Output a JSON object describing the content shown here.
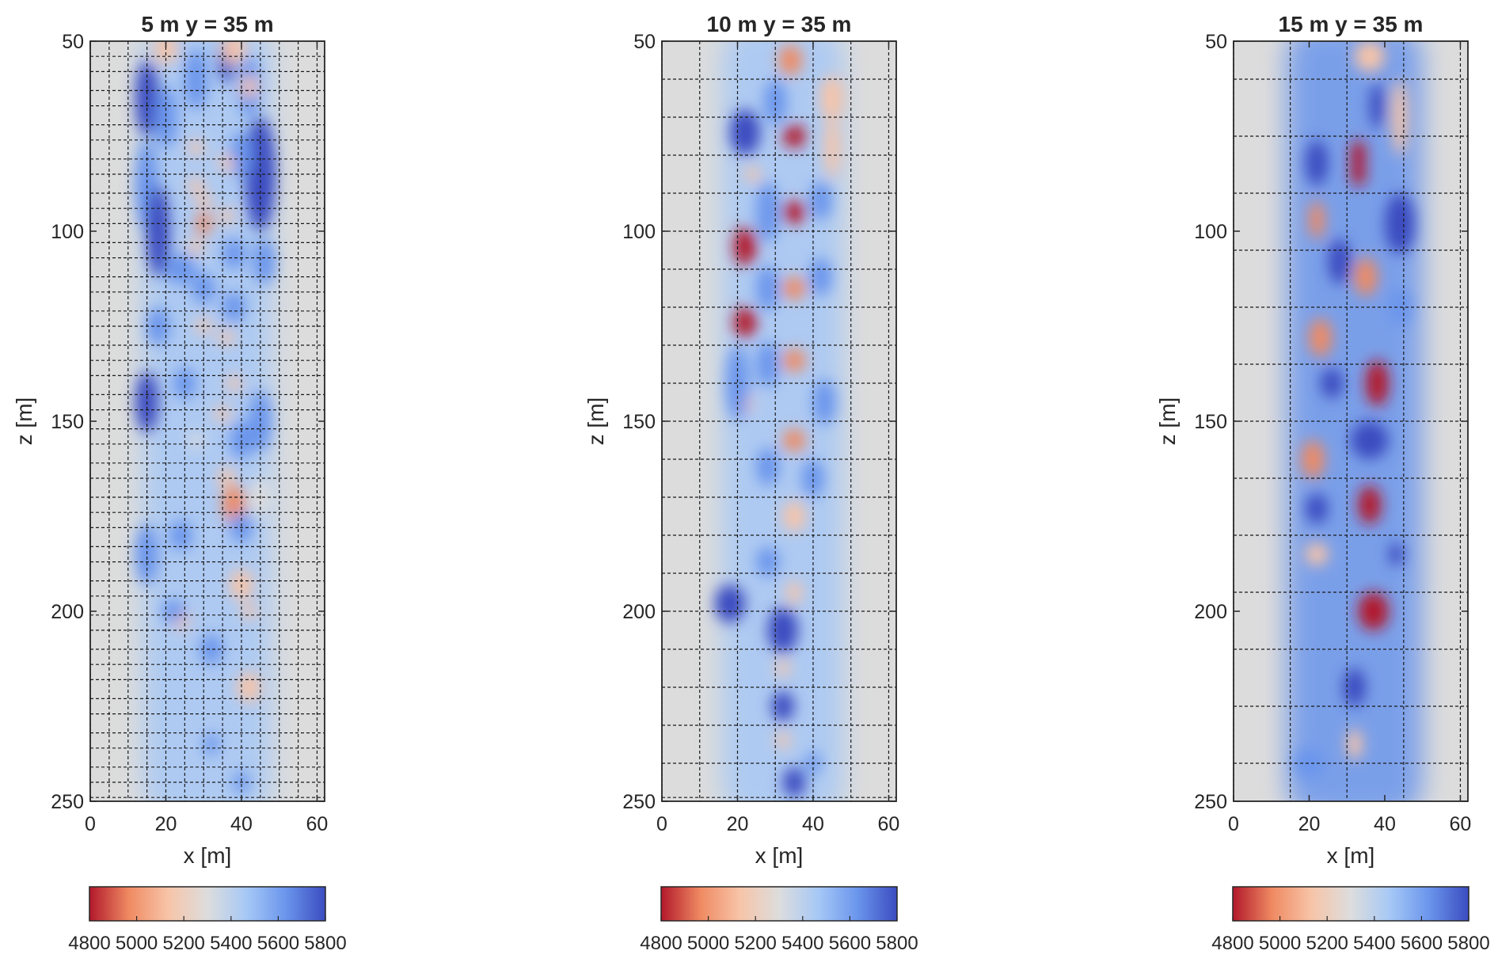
{
  "chart_data": [
    {
      "type": "heatmap",
      "title": "5 m  y = 35 m",
      "xlabel": "x [m]",
      "ylabel": "z [m]",
      "xlim": [
        0,
        62
      ],
      "ylim": [
        50,
        250
      ],
      "y_reversed": true,
      "xticks": [
        0,
        20,
        40,
        60
      ],
      "yticks": [
        50,
        100,
        150,
        200,
        250
      ],
      "grid": true,
      "grid_x": [
        0,
        5,
        10,
        15,
        20,
        25,
        30,
        35,
        40,
        45,
        50,
        55,
        60
      ],
      "grid_z": [
        54,
        58,
        63,
        67,
        72,
        76,
        81,
        85,
        90,
        94,
        98,
        103,
        107,
        112,
        116,
        121,
        125,
        130,
        134,
        138,
        143,
        147,
        152,
        156,
        161,
        165,
        170,
        174,
        178,
        183,
        187,
        192,
        196,
        201,
        205,
        210,
        214,
        218,
        223,
        227,
        232,
        236,
        241,
        245,
        249
      ],
      "background_color": "#dcdcdc",
      "colormap": [
        "#b2182b",
        "#ef8a62",
        "#f7c4a8",
        "#dddddd",
        "#a6c8f6",
        "#6a95ec",
        "#3b4cc0"
      ],
      "colorbar": {
        "min": 4800,
        "max": 5800,
        "ticks": [
          4800,
          5000,
          5200,
          5400,
          5600,
          5800
        ]
      },
      "band": {
        "x_center": 31,
        "half_width": 17,
        "value": 5490
      },
      "anomalies": [
        [
          15,
          65,
          3,
          10,
          5720
        ],
        [
          15,
          88,
          3,
          12,
          5700
        ],
        [
          20,
          70,
          3,
          8,
          5650
        ],
        [
          28,
          60,
          3,
          8,
          5680
        ],
        [
          36,
          55,
          2,
          6,
          5720
        ],
        [
          42,
          62,
          3,
          8,
          5700
        ],
        [
          45,
          85,
          4,
          15,
          5750
        ],
        [
          40,
          80,
          3,
          6,
          5680
        ],
        [
          20,
          52,
          3,
          4,
          5150
        ],
        [
          38,
          52,
          3,
          4,
          5180
        ],
        [
          42,
          62,
          2,
          3,
          5050
        ],
        [
          28,
          78,
          2,
          2,
          5150
        ],
        [
          36,
          82,
          2,
          2,
          5100
        ],
        [
          28,
          88,
          2,
          2,
          5150
        ],
        [
          30,
          92,
          2,
          2,
          5200
        ],
        [
          30,
          98,
          2,
          3,
          5000
        ],
        [
          28,
          104,
          2,
          2,
          5150
        ],
        [
          36,
          96,
          2,
          2,
          5200
        ],
        [
          18,
          100,
          3,
          12,
          5780
        ],
        [
          24,
          110,
          4,
          4,
          5650
        ],
        [
          46,
          108,
          3,
          6,
          5650
        ],
        [
          38,
          106,
          3,
          4,
          5680
        ],
        [
          30,
          115,
          3,
          4,
          5650
        ],
        [
          38,
          120,
          3,
          4,
          5680
        ],
        [
          30,
          125,
          2,
          2,
          5200
        ],
        [
          36,
          128,
          2,
          2,
          5150
        ],
        [
          18,
          125,
          3,
          5,
          5650
        ],
        [
          25,
          140,
          3,
          4,
          5600
        ],
        [
          38,
          140,
          2,
          2,
          5150
        ],
        [
          35,
          148,
          2,
          2,
          5200
        ],
        [
          28,
          155,
          2,
          2,
          5250
        ],
        [
          15,
          145,
          3,
          8,
          5720
        ],
        [
          45,
          150,
          3,
          8,
          5680
        ],
        [
          40,
          155,
          3,
          5,
          5650
        ],
        [
          36,
          165,
          2,
          3,
          5200
        ],
        [
          38,
          172,
          3,
          5,
          5000
        ],
        [
          45,
          170,
          3,
          5,
          5250
        ],
        [
          15,
          185,
          3,
          8,
          5700
        ],
        [
          24,
          180,
          3,
          4,
          5650
        ],
        [
          40,
          178,
          3,
          4,
          5620
        ],
        [
          40,
          193,
          3,
          4,
          5050
        ],
        [
          42,
          200,
          2,
          2,
          5150
        ],
        [
          24,
          202,
          2,
          3,
          5150
        ],
        [
          32,
          210,
          3,
          4,
          5700
        ],
        [
          22,
          200,
          3,
          3,
          5650
        ],
        [
          42,
          220,
          3,
          4,
          5200
        ],
        [
          40,
          245,
          2,
          3,
          5600
        ],
        [
          32,
          235,
          2,
          3,
          5560
        ]
      ]
    },
    {
      "type": "heatmap",
      "title": "10 m  y = 35 m",
      "xlabel": "x [m]",
      "ylabel": "z [m]",
      "xlim": [
        0,
        62
      ],
      "ylim": [
        50,
        250
      ],
      "y_reversed": true,
      "xticks": [
        0,
        20,
        40,
        60
      ],
      "yticks": [
        50,
        100,
        150,
        200,
        250
      ],
      "grid": true,
      "grid_x": [
        0,
        10,
        20,
        30,
        40,
        50,
        60
      ],
      "grid_z": [
        60,
        70,
        80,
        90,
        100,
        110,
        120,
        130,
        140,
        150,
        160,
        170,
        180,
        190,
        200,
        210,
        220,
        230,
        240,
        249
      ],
      "background_color": "#dcdcdc",
      "colormap": [
        "#b2182b",
        "#ef8a62",
        "#f7c4a8",
        "#dddddd",
        "#a6c8f6",
        "#6a95ec",
        "#3b4cc0"
      ],
      "colorbar": {
        "min": 4800,
        "max": 5800,
        "ticks": [
          4800,
          5000,
          5200,
          5400,
          5600,
          5800
        ]
      },
      "band": {
        "x_center": 32,
        "half_width": 16,
        "value": 5530
      },
      "anomalies": [
        [
          34,
          55,
          3,
          4,
          4950
        ],
        [
          45,
          65,
          3,
          6,
          5050
        ],
        [
          35,
          75,
          3,
          3,
          4850
        ],
        [
          24,
          85,
          2,
          2,
          5200
        ],
        [
          35,
          95,
          3,
          3,
          4850
        ],
        [
          22,
          104,
          3,
          5,
          4850
        ],
        [
          35,
          115,
          3,
          3,
          5000
        ],
        [
          22,
          124,
          3,
          4,
          4850
        ],
        [
          35,
          134,
          3,
          3,
          4900
        ],
        [
          22,
          145,
          2,
          3,
          5050
        ],
        [
          35,
          155,
          3,
          3,
          4950
        ],
        [
          35,
          175,
          3,
          4,
          5150
        ],
        [
          35,
          195,
          2,
          3,
          5150
        ],
        [
          32,
          215,
          2,
          2,
          5150
        ],
        [
          32,
          234,
          2,
          2,
          5050
        ],
        [
          45,
          78,
          2,
          8,
          5150
        ],
        [
          30,
          66,
          3,
          6,
          5650
        ],
        [
          22,
          74,
          4,
          6,
          5780
        ],
        [
          28,
          95,
          3,
          8,
          5650
        ],
        [
          42,
          92,
          3,
          5,
          5700
        ],
        [
          28,
          115,
          3,
          6,
          5650
        ],
        [
          42,
          112,
          3,
          5,
          5700
        ],
        [
          28,
          135,
          3,
          6,
          5650
        ],
        [
          43,
          145,
          3,
          6,
          5700
        ],
        [
          20,
          140,
          3,
          10,
          5650
        ],
        [
          28,
          162,
          3,
          5,
          5650
        ],
        [
          40,
          165,
          3,
          5,
          5650
        ],
        [
          18,
          198,
          4,
          5,
          5750
        ],
        [
          32,
          205,
          4,
          6,
          5800
        ],
        [
          32,
          225,
          3,
          4,
          5780
        ],
        [
          35,
          245,
          3,
          4,
          5780
        ],
        [
          40,
          240,
          2,
          3,
          5700
        ],
        [
          28,
          187,
          3,
          4,
          5650
        ]
      ]
    },
    {
      "type": "heatmap",
      "title": "15 m  y = 35 m",
      "xlabel": "x [m]",
      "ylabel": "z [m]",
      "xlim": [
        0,
        62
      ],
      "ylim": [
        50,
        250
      ],
      "y_reversed": true,
      "xticks": [
        0,
        20,
        40,
        60
      ],
      "yticks": [
        50,
        100,
        150,
        200,
        250
      ],
      "grid": true,
      "grid_x": [
        0,
        15,
        30,
        45,
        60
      ],
      "grid_z": [
        60,
        75,
        90,
        105,
        120,
        135,
        150,
        165,
        180,
        195,
        210,
        225,
        240
      ],
      "background_color": "#dcdcdc",
      "colormap": [
        "#b2182b",
        "#ef8a62",
        "#f7c4a8",
        "#dddddd",
        "#a6c8f6",
        "#6a95ec",
        "#3b4cc0"
      ],
      "colorbar": {
        "min": 4800,
        "max": 5800,
        "ticks": [
          4800,
          5000,
          5200,
          5400,
          5600,
          5800
        ]
      },
      "band": {
        "x_center": 32,
        "half_width": 18,
        "value": 5560
      },
      "anomalies": [
        [
          36,
          54,
          4,
          4,
          5050
        ],
        [
          33,
          80,
          2,
          4,
          4850
        ],
        [
          33,
          85,
          2,
          3,
          4880
        ],
        [
          22,
          97,
          2,
          5,
          5000
        ],
        [
          35,
          112,
          3,
          5,
          4900
        ],
        [
          23,
          128,
          3,
          5,
          4950
        ],
        [
          38,
          140,
          3,
          6,
          4800
        ],
        [
          21,
          160,
          3,
          5,
          4900
        ],
        [
          36,
          172,
          3,
          5,
          4850
        ],
        [
          22,
          185,
          3,
          3,
          5050
        ],
        [
          37,
          200,
          4,
          5,
          4820
        ],
        [
          32,
          235,
          2,
          4,
          5150
        ],
        [
          44,
          70,
          2,
          10,
          5150
        ],
        [
          38,
          67,
          2,
          6,
          5800
        ],
        [
          22,
          82,
          3,
          6,
          5780
        ],
        [
          44,
          98,
          4,
          8,
          5800
        ],
        [
          28,
          108,
          3,
          6,
          5760
        ],
        [
          26,
          140,
          3,
          4,
          5760
        ],
        [
          44,
          120,
          3,
          5,
          5700
        ],
        [
          36,
          155,
          5,
          5,
          5800
        ],
        [
          22,
          173,
          3,
          4,
          5800
        ],
        [
          43,
          185,
          2,
          3,
          5750
        ],
        [
          32,
          220,
          3,
          5,
          5750
        ],
        [
          20,
          240,
          4,
          4,
          5650
        ]
      ]
    }
  ]
}
